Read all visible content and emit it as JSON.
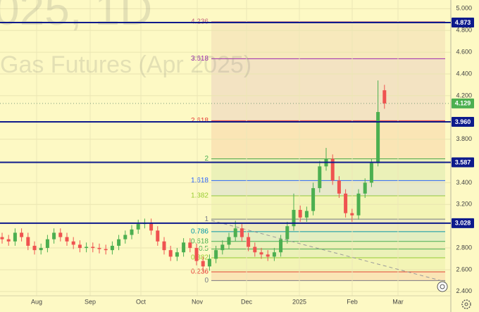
{
  "chart_data": {
    "type": "candlestick",
    "watermark": {
      "symbol": "025, 1D",
      "description": "Gas Futures (Apr 2025)"
    },
    "x_labels": [
      "Aug",
      "Sep",
      "Oct",
      "Nov",
      "Dec",
      "2025",
      "Feb",
      "Mar"
    ],
    "open": [
      2.9,
      2.88,
      2.86,
      2.94,
      2.9,
      2.82,
      2.78,
      2.8,
      2.88,
      2.94,
      2.9,
      2.86,
      2.83,
      2.8,
      2.81,
      2.8,
      2.79,
      2.78,
      2.82,
      2.88,
      2.92,
      2.97,
      3.02,
      3.03,
      2.96,
      2.86,
      2.78,
      2.72,
      2.76,
      2.85,
      2.8,
      2.68,
      2.63,
      2.7,
      2.78,
      2.83,
      2.9,
      2.98,
      2.9,
      2.81,
      2.76,
      2.74,
      2.72,
      2.76,
      2.88,
      3.0,
      3.15,
      3.08,
      3.14,
      3.35,
      3.55,
      3.62,
      3.42,
      3.3,
      3.12,
      3.1,
      3.3,
      3.4,
      3.58,
      4.25
    ],
    "high": [
      2.94,
      2.92,
      2.98,
      2.98,
      2.94,
      2.86,
      2.84,
      2.92,
      2.98,
      2.98,
      2.94,
      2.9,
      2.87,
      2.85,
      2.85,
      2.84,
      2.83,
      2.86,
      2.92,
      2.96,
      3.01,
      3.06,
      3.07,
      3.07,
      3.0,
      2.9,
      2.82,
      2.8,
      2.89,
      2.89,
      2.84,
      2.72,
      2.74,
      2.82,
      2.87,
      2.94,
      3.05,
      3.02,
      2.94,
      2.85,
      2.8,
      2.78,
      2.8,
      2.92,
      3.04,
      3.3,
      3.19,
      3.18,
      3.4,
      3.6,
      3.72,
      3.66,
      3.46,
      3.34,
      3.16,
      3.34,
      3.44,
      3.62,
      4.34,
      4.3
    ],
    "low": [
      2.84,
      2.82,
      2.82,
      2.86,
      2.78,
      2.74,
      2.74,
      2.76,
      2.84,
      2.86,
      2.82,
      2.79,
      2.76,
      2.76,
      2.76,
      2.75,
      2.74,
      2.74,
      2.78,
      2.84,
      2.88,
      2.93,
      2.98,
      2.92,
      2.82,
      2.74,
      2.68,
      2.68,
      2.72,
      2.76,
      2.64,
      2.59,
      2.59,
      2.66,
      2.74,
      2.79,
      2.86,
      2.86,
      2.77,
      2.72,
      2.7,
      2.68,
      2.68,
      2.72,
      2.84,
      2.96,
      3.04,
      3.04,
      3.1,
      3.31,
      3.51,
      3.38,
      3.26,
      3.08,
      3.04,
      3.06,
      3.26,
      3.36,
      3.55,
      4.08
    ],
    "close": [
      2.88,
      2.86,
      2.94,
      2.9,
      2.82,
      2.78,
      2.8,
      2.88,
      2.94,
      2.9,
      2.86,
      2.83,
      2.8,
      2.81,
      2.8,
      2.79,
      2.78,
      2.82,
      2.88,
      2.92,
      2.97,
      3.02,
      3.03,
      2.96,
      2.86,
      2.78,
      2.72,
      2.76,
      2.85,
      2.8,
      2.68,
      2.63,
      2.7,
      2.78,
      2.83,
      2.9,
      2.98,
      2.9,
      2.81,
      2.76,
      2.74,
      2.72,
      2.76,
      2.88,
      3.0,
      3.15,
      3.08,
      3.14,
      3.35,
      3.55,
      3.62,
      3.42,
      3.3,
      3.12,
      3.1,
      3.3,
      3.4,
      3.58,
      4.05,
      4.129
    ],
    "up_color": "#4caf50",
    "down_color": "#ef5350",
    "ylim": [
      2.36,
      5.08
    ],
    "yticks": [
      {
        "value": 2.4,
        "label": "2.400"
      },
      {
        "value": 2.6,
        "label": "2.600"
      },
      {
        "value": 2.8,
        "label": "2.800"
      },
      {
        "value": 3.2,
        "label": "3.200"
      },
      {
        "value": 3.4,
        "label": "3.400"
      },
      {
        "value": 3.8,
        "label": "3.800"
      },
      {
        "value": 4.2,
        "label": "4.200"
      },
      {
        "value": 4.4,
        "label": "4.400"
      },
      {
        "value": 4.6,
        "label": "4.600"
      },
      {
        "value": 4.8,
        "label": "4.800"
      },
      {
        "value": 5,
        "label": "5.000"
      }
    ],
    "grid": true,
    "levels": [
      4.873,
      {
        "value": 3.96,
        "label": "3.960"
      },
      3.587,
      3.028
    ],
    "level_color": "#0d1a8c",
    "fib": {
      "labels": [
        "0",
        "0.236",
        "0.382",
        "0.5",
        "0.618",
        "0.786",
        "1",
        "1.382",
        "1.618",
        "2",
        "2.618",
        "3.618",
        "4.236"
      ],
      "prices": [
        2.5,
        2.58,
        2.71,
        2.79,
        2.86,
        2.95,
        3.065,
        3.28,
        3.42,
        3.62,
        3.97,
        4.54,
        4.88
      ],
      "colors": [
        "#787b86",
        "#e53935",
        "#9acd32",
        "#4caf50",
        "#4caf50",
        "#0097a7",
        "#787b86",
        "#9acd32",
        "#2962ff",
        "#4caf50",
        "#e53935",
        "#9c27b0",
        "#c2607a"
      ]
    }
  }
}
